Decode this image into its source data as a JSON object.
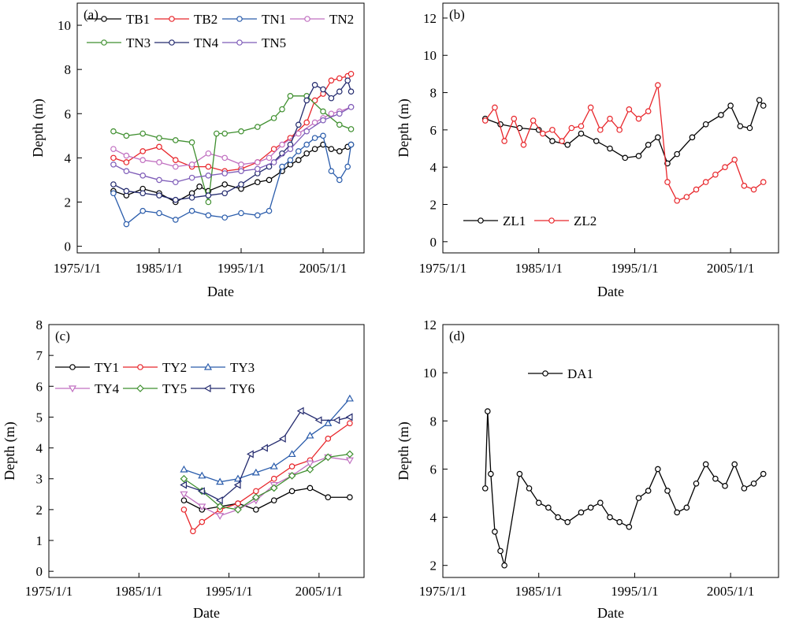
{
  "chart_data": [
    {
      "type": "line",
      "panel_label": "(a)",
      "xlabel": "Date",
      "ylabel": "Depth (m)",
      "x_ticks": [
        "1975/1/1",
        "1985/1/1",
        "1995/1/1",
        "2005/1/1"
      ],
      "y_ticks": [
        "0",
        "2",
        "4",
        "6",
        "8",
        "10"
      ],
      "ylim": [
        -0.3,
        11
      ],
      "xlim": [
        "1975/1/1",
        "2010/1/1"
      ],
      "grid": false,
      "legend_position": "top",
      "series": [
        {
          "name": "TB1",
          "color": "#000000",
          "marker": "circle",
          "x": [
            "1979/6/1",
            "1981/1/1",
            "1983/1/1",
            "1985/1/1",
            "1987/1/1",
            "1989/1/1",
            "1989/12/1",
            "1991/1/1",
            "1993/1/1",
            "1995/1/1",
            "1997/1/1",
            "1998/6/1",
            "2000/1/1",
            "2001/1/1",
            "2002/1/1",
            "2003/1/1",
            "2004/1/1",
            "2005/1/1",
            "2006/1/1",
            "2007/1/1",
            "2008/1/1",
            "2008/6/1"
          ],
          "y": [
            2.5,
            2.3,
            2.6,
            2.4,
            2.0,
            2.4,
            2.7,
            2.5,
            2.8,
            2.6,
            2.9,
            3.0,
            3.4,
            3.7,
            3.9,
            4.2,
            4.4,
            4.6,
            4.4,
            4.3,
            4.5,
            4.6
          ]
        },
        {
          "name": "TB2",
          "color": "#e8262b",
          "marker": "circle",
          "x": [
            "1979/6/1",
            "1981/1/1",
            "1983/1/1",
            "1985/1/1",
            "1987/1/1",
            "1989/1/1",
            "1991/1/1",
            "1993/1/1",
            "1995/1/1",
            "1997/1/1",
            "1999/1/1",
            "2001/1/1",
            "2003/1/1",
            "2004/1/1",
            "2005/1/1",
            "2006/1/1",
            "2007/1/1",
            "2008/1/1",
            "2008/6/1"
          ],
          "y": [
            4.0,
            3.8,
            4.3,
            4.5,
            3.9,
            3.6,
            3.6,
            3.4,
            3.5,
            3.8,
            4.4,
            4.9,
            5.6,
            6.6,
            6.9,
            7.5,
            7.6,
            7.7,
            7.8
          ]
        },
        {
          "name": "TN1",
          "color": "#2a5cab",
          "marker": "circle",
          "x": [
            "1979/6/1",
            "1981/1/1",
            "1983/1/1",
            "1985/1/1",
            "1987/1/1",
            "1989/1/1",
            "1991/1/1",
            "1993/1/1",
            "1995/1/1",
            "1997/1/1",
            "1998/6/1",
            "2000/1/1",
            "2001/1/1",
            "2002/1/1",
            "2003/1/1",
            "2004/1/1",
            "2005/1/1",
            "2006/1/1",
            "2007/1/1",
            "2008/1/1",
            "2008/6/1"
          ],
          "y": [
            2.4,
            1.0,
            1.6,
            1.5,
            1.2,
            1.6,
            1.4,
            1.3,
            1.5,
            1.4,
            1.6,
            3.6,
            3.9,
            4.3,
            4.6,
            4.9,
            5.0,
            3.4,
            3.0,
            3.6,
            4.6
          ]
        },
        {
          "name": "TN2",
          "color": "#c06fc0",
          "marker": "circle",
          "x": [
            "1979/6/1",
            "1981/1/1",
            "1983/1/1",
            "1985/1/1",
            "1987/1/1",
            "1989/1/1",
            "1991/1/1",
            "1993/1/1",
            "1995/1/1",
            "1997/1/1",
            "1998/6/1",
            "2000/1/1",
            "2002/1/1",
            "2004/1/1",
            "2005/1/1",
            "2006/1/1",
            "2007/1/1",
            "2008/6/1"
          ],
          "y": [
            4.4,
            4.1,
            3.9,
            3.8,
            3.6,
            3.7,
            4.2,
            4.0,
            3.7,
            3.8,
            4.0,
            4.6,
            5.1,
            5.6,
            5.8,
            6.0,
            6.1,
            6.3
          ]
        },
        {
          "name": "TN3",
          "color": "#3f8f2f",
          "marker": "circle",
          "x": [
            "1979/6/1",
            "1981/1/1",
            "1983/1/1",
            "1985/1/1",
            "1987/1/1",
            "1989/1/1",
            "1991/1/1",
            "1992/1/1",
            "1993/1/1",
            "1995/1/1",
            "1997/1/1",
            "1999/1/1",
            "2000/1/1",
            "2001/1/1",
            "2003/1/1",
            "2005/1/1",
            "2007/1/1",
            "2008/6/1"
          ],
          "y": [
            5.2,
            5.0,
            5.1,
            4.9,
            4.8,
            4.7,
            2.0,
            5.1,
            5.1,
            5.2,
            5.4,
            5.8,
            6.2,
            6.8,
            6.8,
            6.1,
            5.5,
            5.3
          ]
        },
        {
          "name": "TN4",
          "color": "#232a6e",
          "marker": "circle",
          "x": [
            "1979/6/1",
            "1981/1/1",
            "1983/1/1",
            "1985/1/1",
            "1987/1/1",
            "1989/1/1",
            "1991/1/1",
            "1993/1/1",
            "1995/1/1",
            "1997/1/1",
            "1998/6/1",
            "2000/1/1",
            "2001/1/1",
            "2002/1/1",
            "2003/1/1",
            "2004/1/1",
            "2005/1/1",
            "2006/1/1",
            "2007/1/1",
            "2008/1/1",
            "2008/6/1"
          ],
          "y": [
            2.8,
            2.5,
            2.4,
            2.3,
            2.1,
            2.2,
            2.3,
            2.4,
            2.8,
            3.3,
            3.6,
            4.2,
            4.6,
            5.5,
            6.6,
            7.3,
            7.1,
            6.7,
            7.0,
            7.5,
            7.0
          ]
        },
        {
          "name": "TN5",
          "color": "#7e5cb8",
          "marker": "circle",
          "x": [
            "1979/6/1",
            "1981/1/1",
            "1983/1/1",
            "1985/1/1",
            "1987/1/1",
            "1989/1/1",
            "1991/1/1",
            "1993/1/1",
            "1995/1/1",
            "1997/1/1",
            "1999/1/1",
            "2001/1/1",
            "2003/1/1",
            "2005/1/1",
            "2007/1/1",
            "2008/6/1"
          ],
          "y": [
            3.7,
            3.4,
            3.2,
            3.0,
            2.9,
            3.1,
            3.2,
            3.3,
            3.4,
            3.5,
            3.8,
            4.4,
            5.2,
            5.7,
            6.0,
            6.3
          ]
        }
      ]
    },
    {
      "type": "line",
      "panel_label": "(b)",
      "xlabel": "Date",
      "ylabel": "Depth (m)",
      "x_ticks": [
        "1975/1/1",
        "1985/1/1",
        "1995/1/1",
        "2005/1/1"
      ],
      "y_ticks": [
        "0",
        "2",
        "4",
        "6",
        "8",
        "10",
        "12"
      ],
      "ylim": [
        -0.6,
        12.8
      ],
      "xlim": [
        "1975/1/1",
        "2010/1/1"
      ],
      "grid": false,
      "legend_position": "bottom-left",
      "series": [
        {
          "name": "ZL1",
          "color": "#000000",
          "marker": "circle",
          "x": [
            "1979/6/1",
            "1981/1/1",
            "1983/1/1",
            "1985/1/1",
            "1986/6/1",
            "1988/1/1",
            "1989/6/1",
            "1991/1/1",
            "1992/6/1",
            "1994/1/1",
            "1995/6/1",
            "1996/6/1",
            "1997/6/1",
            "1998/6/1",
            "1999/6/1",
            "2001/1/1",
            "2002/6/1",
            "2004/1/1",
            "2005/1/1",
            "2006/1/1",
            "2007/1/1",
            "2008/1/1",
            "2008/6/1"
          ],
          "y": [
            6.6,
            6.3,
            6.1,
            6.0,
            5.4,
            5.2,
            5.8,
            5.4,
            5.0,
            4.5,
            4.6,
            5.2,
            5.6,
            4.2,
            4.7,
            5.6,
            6.3,
            6.8,
            7.3,
            6.2,
            6.1,
            7.6,
            7.3
          ]
        },
        {
          "name": "ZL2",
          "color": "#e8262b",
          "marker": "circle",
          "x": [
            "1979/6/1",
            "1980/6/1",
            "1981/6/1",
            "1982/6/1",
            "1983/6/1",
            "1984/6/1",
            "1985/6/1",
            "1986/6/1",
            "1987/6/1",
            "1988/6/1",
            "1989/6/1",
            "1990/6/1",
            "1991/6/1",
            "1992/6/1",
            "1993/6/1",
            "1994/6/1",
            "1995/6/1",
            "1996/6/1",
            "1997/6/1",
            "1998/6/1",
            "1999/6/1",
            "2000/6/1",
            "2001/6/1",
            "2002/6/1",
            "2003/6/1",
            "2004/6/1",
            "2005/6/1",
            "2006/6/1",
            "2007/6/1",
            "2008/6/1"
          ],
          "y": [
            6.5,
            7.2,
            5.4,
            6.6,
            5.2,
            6.5,
            5.8,
            6.0,
            5.4,
            6.1,
            6.2,
            7.2,
            6.0,
            6.6,
            6.0,
            7.1,
            6.6,
            7.0,
            8.4,
            3.2,
            2.2,
            2.4,
            2.8,
            3.2,
            3.6,
            4.0,
            4.4,
            3.0,
            2.8,
            3.2
          ]
        }
      ]
    },
    {
      "type": "line",
      "panel_label": "(c)",
      "xlabel": "Date",
      "ylabel": "Depth (m)",
      "x_ticks": [
        "1975/1/1",
        "1985/1/1",
        "1995/1/1",
        "2005/1/1"
      ],
      "y_ticks": [
        "0",
        "1",
        "2",
        "3",
        "4",
        "5",
        "6",
        "7",
        "8"
      ],
      "ylim": [
        -0.2,
        8
      ],
      "xlim": [
        "1975/1/1",
        "2010/1/1"
      ],
      "grid": false,
      "legend_position": "top-left",
      "series": [
        {
          "name": "TY1",
          "color": "#000000",
          "marker": "circle",
          "x": [
            "1990/1/1",
            "1992/1/1",
            "1994/1/1",
            "1996/1/1",
            "1998/1/1",
            "2000/1/1",
            "2002/1/1",
            "2004/1/1",
            "2006/1/1",
            "2008/6/1"
          ],
          "y": [
            2.3,
            2.0,
            2.1,
            2.2,
            2.0,
            2.3,
            2.6,
            2.7,
            2.4,
            2.4
          ]
        },
        {
          "name": "TY2",
          "color": "#e8262b",
          "marker": "circle",
          "x": [
            "1990/1/1",
            "1991/1/1",
            "1992/1/1",
            "1994/1/1",
            "1996/1/1",
            "1998/1/1",
            "2000/1/1",
            "2002/1/1",
            "2004/1/1",
            "2006/1/1",
            "2008/6/1"
          ],
          "y": [
            2.0,
            1.3,
            1.6,
            2.0,
            2.2,
            2.6,
            3.0,
            3.4,
            3.6,
            4.3,
            4.8
          ]
        },
        {
          "name": "TY3",
          "color": "#2a5cab",
          "marker": "triangle-up",
          "x": [
            "1990/1/1",
            "1992/1/1",
            "1994/1/1",
            "1996/1/1",
            "1998/1/1",
            "2000/1/1",
            "2002/1/1",
            "2004/1/1",
            "2006/1/1",
            "2008/6/1"
          ],
          "y": [
            3.3,
            3.1,
            2.9,
            3.0,
            3.2,
            3.4,
            3.8,
            4.4,
            4.8,
            5.6
          ]
        },
        {
          "name": "TY4",
          "color": "#c06fc0",
          "marker": "triangle-down",
          "x": [
            "1990/1/1",
            "1992/1/1",
            "1994/1/1",
            "1996/1/1",
            "1998/1/1",
            "2000/1/1",
            "2002/1/1",
            "2004/1/1",
            "2006/1/1",
            "2008/6/1"
          ],
          "y": [
            2.5,
            2.1,
            1.8,
            2.0,
            2.3,
            2.8,
            3.1,
            3.5,
            3.7,
            3.6
          ]
        },
        {
          "name": "TY5",
          "color": "#3f8f2f",
          "marker": "diamond",
          "x": [
            "1990/1/1",
            "1992/1/1",
            "1994/1/1",
            "1996/1/1",
            "1998/1/1",
            "2000/1/1",
            "2002/1/1",
            "2004/1/1",
            "2006/1/1",
            "2008/6/1"
          ],
          "y": [
            3.0,
            2.6,
            2.1,
            2.0,
            2.4,
            2.7,
            3.1,
            3.3,
            3.7,
            3.8
          ]
        },
        {
          "name": "TY6",
          "color": "#232a6e",
          "marker": "triangle-left",
          "x": [
            "1990/1/1",
            "1992/1/1",
            "1994/1/1",
            "1996/1/1",
            "1997/6/1",
            "1999/1/1",
            "2001/1/1",
            "2003/1/1",
            "2005/1/1",
            "2007/1/1",
            "2008/6/1"
          ],
          "y": [
            2.8,
            2.6,
            2.3,
            2.8,
            3.8,
            4.0,
            4.3,
            5.2,
            4.9,
            4.9,
            5.0
          ]
        }
      ]
    },
    {
      "type": "line",
      "panel_label": "(d)",
      "xlabel": "Date",
      "ylabel": "Depth (m)",
      "x_ticks": [
        "1975/1/1",
        "1985/1/1",
        "1995/1/1",
        "2005/1/1"
      ],
      "y_ticks": [
        "2",
        "4",
        "6",
        "8",
        "10",
        "12"
      ],
      "ylim": [
        1.5,
        12
      ],
      "xlim": [
        "1975/1/1",
        "2010/1/1"
      ],
      "grid": false,
      "legend_position": "top-left",
      "series": [
        {
          "name": "DA1",
          "color": "#000000",
          "marker": "circle",
          "x": [
            "1979/6/1",
            "1979/9/1",
            "1980/1/1",
            "1980/6/1",
            "1981/1/1",
            "1981/6/1",
            "1983/1/1",
            "1984/1/1",
            "1985/1/1",
            "1986/1/1",
            "1987/1/1",
            "1988/1/1",
            "1989/6/1",
            "1990/6/1",
            "1991/6/1",
            "1992/6/1",
            "1993/6/1",
            "1994/6/1",
            "1995/6/1",
            "1996/6/1",
            "1997/6/1",
            "1998/6/1",
            "1999/6/1",
            "2000/6/1",
            "2001/6/1",
            "2002/6/1",
            "2003/6/1",
            "2004/6/1",
            "2005/6/1",
            "2006/6/1",
            "2007/6/1",
            "2008/6/1"
          ],
          "y": [
            5.2,
            8.4,
            5.8,
            3.4,
            2.6,
            2.0,
            5.8,
            5.2,
            4.6,
            4.4,
            4.0,
            3.8,
            4.2,
            4.4,
            4.6,
            4.0,
            3.8,
            3.6,
            4.8,
            5.1,
            6.0,
            5.1,
            4.2,
            4.4,
            5.4,
            6.2,
            5.6,
            5.3,
            6.2,
            5.2,
            5.4,
            5.8
          ]
        }
      ]
    }
  ]
}
